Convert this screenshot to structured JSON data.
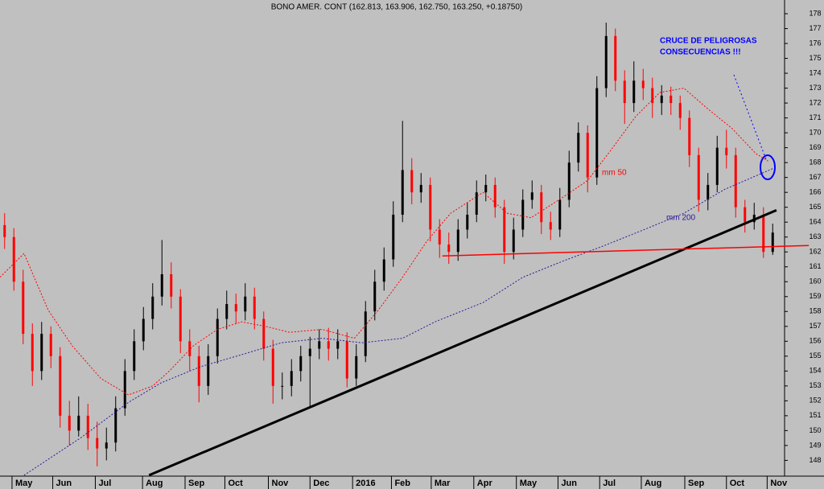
{
  "chart_data": {
    "type": "candlestick",
    "title": "BONO AMER. CONT (162.813, 163.906, 162.750, 163.250, +0.18750)",
    "up_color": "#000000",
    "down_color": "#ff0000",
    "xlim": [
      0,
      84
    ],
    "xticks": [
      {
        "value": 1.3,
        "label": "May"
      },
      {
        "value": 5.7,
        "label": "Jun"
      },
      {
        "value": 10.3,
        "label": "Jul"
      },
      {
        "value": 15.4,
        "label": "Aug"
      },
      {
        "value": 20,
        "label": "Sep"
      },
      {
        "value": 24.3,
        "label": "Oct"
      },
      {
        "value": 29,
        "label": "Nov"
      },
      {
        "value": 33.5,
        "label": "Dec"
      },
      {
        "value": 38.1,
        "label": "2016"
      },
      {
        "value": 42.3,
        "label": "Feb"
      },
      {
        "value": 46.6,
        "label": "Mar"
      },
      {
        "value": 51.2,
        "label": "Apr"
      },
      {
        "value": 55.8,
        "label": "May"
      },
      {
        "value": 60.3,
        "label": "Jun"
      },
      {
        "value": 64.8,
        "label": "Jul"
      },
      {
        "value": 69.3,
        "label": "Aug"
      },
      {
        "value": 74,
        "label": "Sep"
      },
      {
        "value": 78.5,
        "label": "Oct"
      },
      {
        "value": 82.9,
        "label": "Nov"
      }
    ],
    "ylim": [
      147.05,
      178.92
    ],
    "yticks": [
      148,
      149,
      150,
      151,
      152,
      153,
      154,
      155,
      156,
      157,
      158,
      159,
      160,
      161,
      162,
      163,
      164,
      165,
      166,
      167,
      168,
      169,
      170,
      171,
      172,
      173,
      174,
      175,
      176,
      177,
      178
    ],
    "open": [
      163.8,
      163.0,
      160.0,
      156.5,
      154.0,
      156.5,
      155.0,
      151.0,
      150.0,
      151.0,
      149.5,
      148.8,
      149.2,
      151.5,
      154.0,
      156.0,
      157.5,
      159.0,
      160.5,
      159.0,
      156.0,
      155.0,
      153.0,
      155.0,
      157.5,
      158.5,
      158.0,
      159.0,
      157.5,
      155.5,
      153.0,
      153.0,
      154.0,
      155.0,
      155.5,
      156.0,
      155.5,
      156.0,
      153.5,
      155.0,
      158.0,
      160.0,
      161.5,
      164.5,
      167.5,
      166.0,
      166.5,
      163.5,
      162.5,
      162.0,
      163.5,
      164.5,
      166.0,
      166.5,
      165.0,
      162.0,
      163.5,
      165.5,
      166.0,
      164.0,
      163.5,
      165.5,
      168.0,
      170.0,
      167.0,
      173.0,
      176.5,
      173.5,
      172.0,
      173.5,
      173.0,
      172.0,
      172.5,
      172.0,
      171.0,
      168.5,
      165.5,
      166.5,
      169.0,
      168.5,
      165.0,
      164.0,
      164.5,
      162.0
    ],
    "high": [
      164.6,
      163.6,
      160.8,
      157.2,
      157.3,
      157.0,
      155.6,
      152.0,
      152.3,
      151.8,
      150.6,
      150.2,
      152.3,
      154.8,
      156.8,
      158.3,
      159.9,
      162.8,
      161.3,
      159.5,
      156.8,
      155.7,
      155.8,
      158.2,
      159.4,
      159.2,
      159.9,
      159.6,
      158.0,
      156.1,
      153.9,
      154.8,
      155.7,
      156.3,
      156.8,
      156.9,
      156.8,
      156.6,
      155.8,
      158.7,
      160.8,
      162.3,
      165.4,
      170.8,
      168.3,
      167.3,
      167.0,
      164.2,
      163.3,
      164.2,
      165.3,
      166.8,
      167.2,
      167.0,
      165.5,
      164.3,
      166.2,
      166.8,
      166.5,
      164.7,
      166.3,
      168.8,
      170.7,
      170.5,
      173.8,
      177.4,
      177.0,
      174.2,
      174.8,
      174.3,
      173.7,
      173.2,
      173.1,
      172.5,
      171.5,
      169.0,
      167.3,
      169.8,
      170.2,
      169.0,
      165.5,
      165.3,
      165.0,
      163.9
    ],
    "low": [
      162.2,
      159.4,
      155.8,
      153.0,
      153.4,
      154.2,
      150.2,
      149.0,
      149.6,
      148.7,
      147.6,
      148.0,
      148.6,
      151.0,
      153.4,
      155.4,
      156.8,
      158.4,
      158.2,
      155.2,
      154.0,
      151.9,
      152.4,
      154.5,
      156.8,
      157.2,
      157.4,
      156.8,
      154.7,
      151.8,
      152.1,
      152.3,
      153.3,
      151.6,
      154.8,
      154.7,
      154.8,
      152.9,
      153.0,
      154.6,
      157.4,
      159.4,
      161.0,
      164.0,
      165.2,
      165.3,
      162.7,
      161.6,
      161.2,
      161.4,
      162.9,
      164.0,
      165.4,
      164.3,
      161.2,
      161.5,
      163.0,
      164.9,
      163.2,
      162.8,
      163.0,
      165.0,
      167.4,
      166.0,
      166.5,
      172.4,
      172.8,
      170.6,
      171.4,
      172.2,
      171.0,
      171.2,
      171.2,
      170.2,
      167.7,
      164.7,
      164.8,
      166.0,
      167.6,
      164.3,
      163.3,
      163.5,
      161.6,
      161.8
    ],
    "close": [
      163.0,
      160.0,
      156.5,
      154.0,
      156.5,
      155.0,
      151.0,
      150.0,
      151.0,
      149.5,
      148.8,
      149.2,
      151.5,
      154.0,
      156.0,
      157.5,
      159.0,
      160.5,
      159.0,
      156.0,
      155.0,
      153.0,
      155.0,
      157.5,
      158.5,
      158.0,
      159.0,
      157.5,
      155.5,
      153.0,
      153.0,
      154.0,
      155.0,
      155.5,
      156.0,
      155.5,
      156.0,
      153.5,
      155.0,
      158.0,
      160.0,
      161.5,
      164.5,
      167.5,
      166.0,
      166.5,
      163.5,
      162.5,
      162.0,
      163.5,
      164.5,
      166.0,
      166.5,
      165.0,
      162.0,
      163.5,
      165.5,
      166.0,
      164.0,
      163.5,
      165.5,
      168.0,
      170.0,
      167.0,
      173.0,
      176.5,
      173.5,
      172.0,
      173.5,
      173.0,
      172.0,
      172.5,
      172.0,
      171.0,
      168.5,
      165.5,
      166.5,
      169.0,
      168.5,
      165.0,
      164.0,
      164.5,
      162.0,
      163.3
    ],
    "series": [
      {
        "name": "mm 50",
        "color": "#ff0000",
        "x": [
          0,
          2.6,
          5.2,
          7.8,
          10.9,
          13.9,
          16.5,
          18.3,
          20.9,
          23.5,
          26.1,
          28.7,
          31.3,
          34.8,
          38.3,
          40.9,
          43.5,
          46.1,
          48.7,
          52.2,
          54.8,
          57.4,
          60.9,
          63.5,
          66.1,
          68.7,
          71.3,
          73.9,
          76.5,
          79.1,
          81.7,
          83
        ],
        "values": [
          160.3,
          161.9,
          158.1,
          155.7,
          153.5,
          152.4,
          153.0,
          154.0,
          155.7,
          156.8,
          157.3,
          157.0,
          156.6,
          156.8,
          156.2,
          158.1,
          160.3,
          162.7,
          164.6,
          166.0,
          164.6,
          164.3,
          165.7,
          166.8,
          168.9,
          171.1,
          172.7,
          173.0,
          171.6,
          170.3,
          168.6,
          168.1
        ]
      },
      {
        "name": "mm 200",
        "color": "#2a1a9a",
        "x": [
          2.6,
          8.7,
          13.9,
          17.4,
          21.7,
          26.1,
          30.4,
          34.8,
          39.1,
          43.5,
          47.0,
          52.2,
          56.5,
          60.9,
          65.2,
          69.6,
          73.9,
          78.3,
          83.5
        ],
        "values": [
          147.0,
          149.5,
          151.9,
          153.2,
          154.3,
          155.1,
          155.9,
          156.2,
          155.9,
          156.2,
          157.3,
          158.6,
          160.3,
          161.4,
          162.4,
          163.5,
          164.6,
          166.2,
          167.6
        ]
      }
    ],
    "trendlines": [
      {
        "color": "#000000",
        "x": [
          16.1,
          83.9
        ],
        "values": [
          147.0,
          164.8
        ]
      },
      {
        "color": "#ff0000",
        "x": [
          47.8,
          87.4
        ],
        "values": [
          161.73,
          162.43
        ]
      }
    ],
    "annotations": [
      "CRUCE DE PELIGROSAS",
      "CONSECUENCIAS !!!"
    ]
  }
}
